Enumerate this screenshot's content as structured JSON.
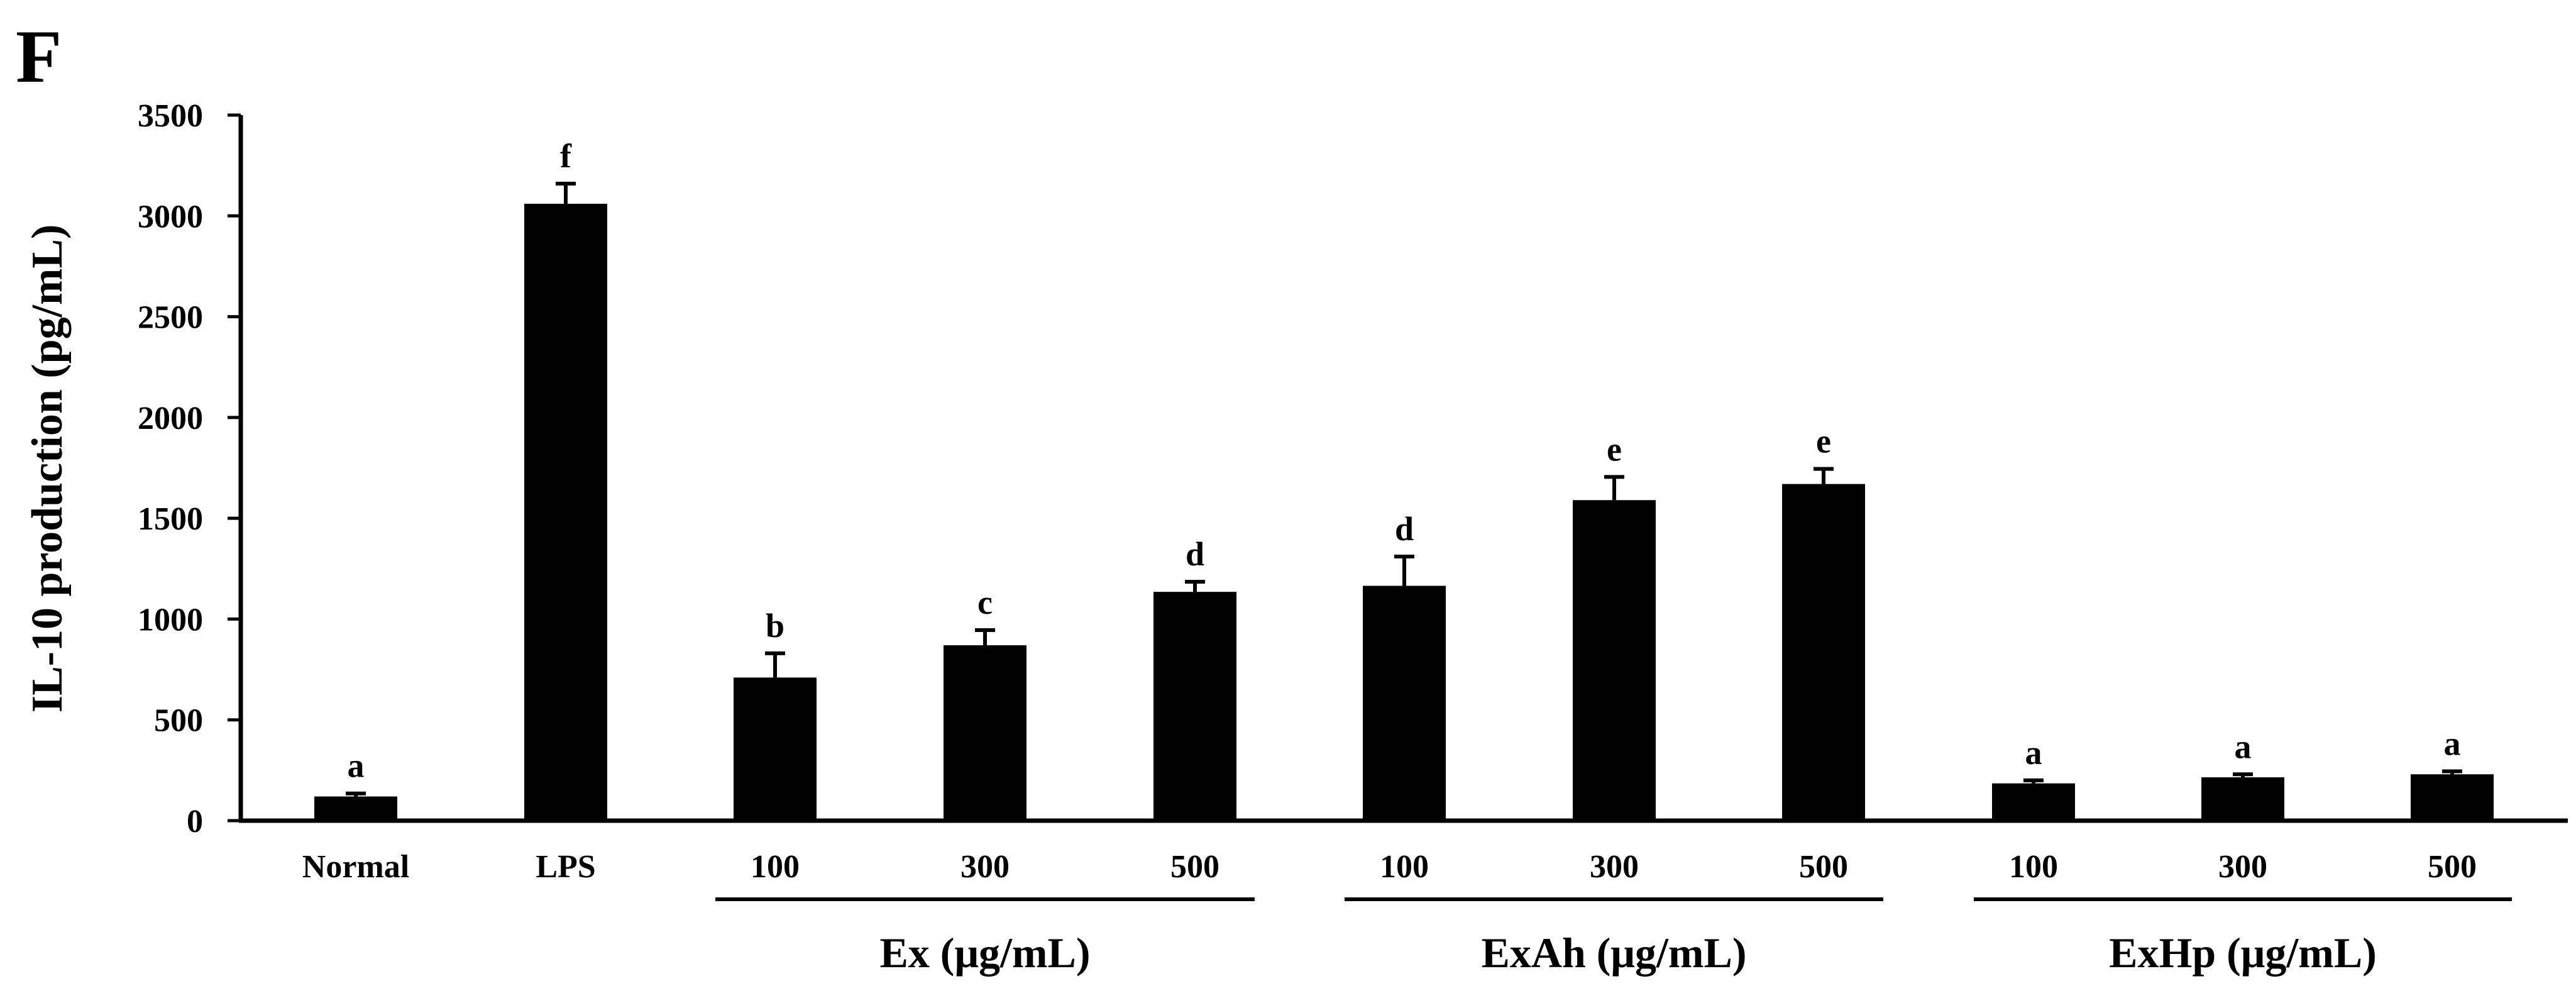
{
  "panel_label": "F",
  "chart_data": {
    "type": "bar",
    "ylabel": "IL-10 production (pg/mL)",
    "xlabel": "",
    "ylim": [
      0,
      3500
    ],
    "yticks": [
      0,
      500,
      1000,
      1500,
      2000,
      2500,
      3000,
      3500
    ],
    "grid": false,
    "legend": "none",
    "bar_color": "#000000",
    "categories": [
      "Normal",
      "LPS",
      "100",
      "300",
      "500",
      "100",
      "300",
      "500",
      "100",
      "300",
      "500"
    ],
    "values": [
      120,
      3060,
      710,
      870,
      1135,
      1165,
      1590,
      1670,
      185,
      215,
      230
    ],
    "errors": [
      15,
      100,
      120,
      75,
      50,
      145,
      115,
      75,
      15,
      15,
      15
    ],
    "significance": [
      "a",
      "f",
      "b",
      "c",
      "d",
      "d",
      "e",
      "e",
      "a",
      "a",
      "a"
    ],
    "groups": [
      {
        "label": "Ex (μg/mL)",
        "start": 2,
        "end": 4
      },
      {
        "label": "ExAh (μg/mL)",
        "start": 5,
        "end": 7
      },
      {
        "label": "ExHp (μg/mL)",
        "start": 8,
        "end": 10
      }
    ]
  }
}
